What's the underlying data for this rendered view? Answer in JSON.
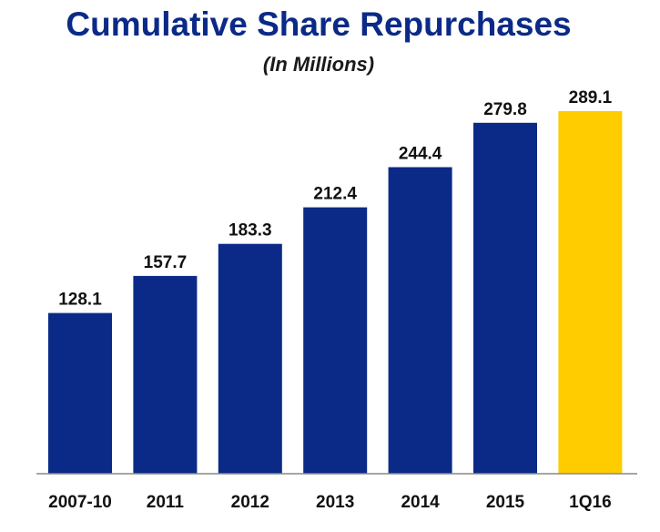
{
  "chart_data": {
    "type": "bar",
    "title": "Cumulative Share Repurchases",
    "subtitle": "(In Millions)",
    "categories": [
      "2007-10",
      "2011",
      "2012",
      "2013",
      "2014",
      "2015",
      "1Q16"
    ],
    "values": [
      128.1,
      157.7,
      183.3,
      212.4,
      244.4,
      279.8,
      289.1
    ],
    "value_labels": [
      "128.1",
      "157.7",
      "183.3",
      "212.4",
      "244.4",
      "279.8",
      "289.1"
    ],
    "bar_colors": [
      "#0b2a87",
      "#0b2a87",
      "#0b2a87",
      "#0b2a87",
      "#0b2a87",
      "#0b2a87",
      "#ffcc00"
    ],
    "ylim": [
      0,
      289.1
    ],
    "grid": false,
    "legend": "none"
  }
}
